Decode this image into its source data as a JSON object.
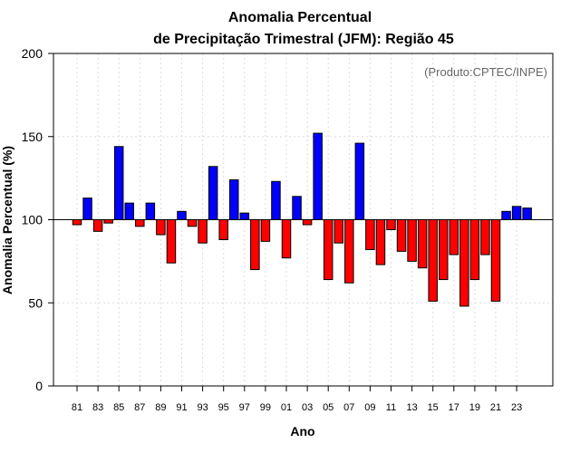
{
  "chart_data": {
    "type": "bar",
    "title": "Anomalia Percentual",
    "subtitle": "de Precipitação Trimestral (JFM): Região 45",
    "xlabel": "Ano",
    "ylabel": "Anomalia Percentual (%)",
    "credit": "(Produto:CPTEC/INPE)",
    "baseline": 100,
    "ylim": [
      0,
      200
    ],
    "yticks": [
      "0",
      "50",
      "100",
      "150",
      "200"
    ],
    "grid": true,
    "categories": [
      "81",
      "82",
      "83",
      "84",
      "85",
      "86",
      "87",
      "88",
      "89",
      "90",
      "91",
      "92",
      "93",
      "94",
      "95",
      "96",
      "97",
      "98",
      "99",
      "00",
      "01",
      "02",
      "03",
      "04",
      "05",
      "06",
      "07",
      "08",
      "09",
      "10",
      "11",
      "12",
      "13",
      "14",
      "15",
      "16",
      "17",
      "18",
      "19",
      "20",
      "21",
      "22",
      "23",
      "24"
    ],
    "xtick_labels": [
      "81",
      "83",
      "85",
      "87",
      "89",
      "91",
      "93",
      "95",
      "97",
      "99",
      "01",
      "03",
      "05",
      "07",
      "09",
      "11",
      "13",
      "15",
      "17",
      "19",
      "21",
      "23"
    ],
    "values": [
      97,
      113,
      93,
      98,
      144,
      110,
      96,
      110,
      91,
      74,
      105,
      96,
      86,
      132,
      88,
      124,
      104,
      70,
      87,
      123,
      77,
      114,
      97,
      152,
      64,
      86,
      62,
      146,
      82,
      73,
      94,
      81,
      75,
      71,
      51,
      64,
      79,
      48,
      64,
      79,
      51,
      105,
      108,
      107
    ],
    "colors": {
      "above": "#0000ff",
      "below": "#ff0000",
      "outline": "#000000"
    }
  }
}
